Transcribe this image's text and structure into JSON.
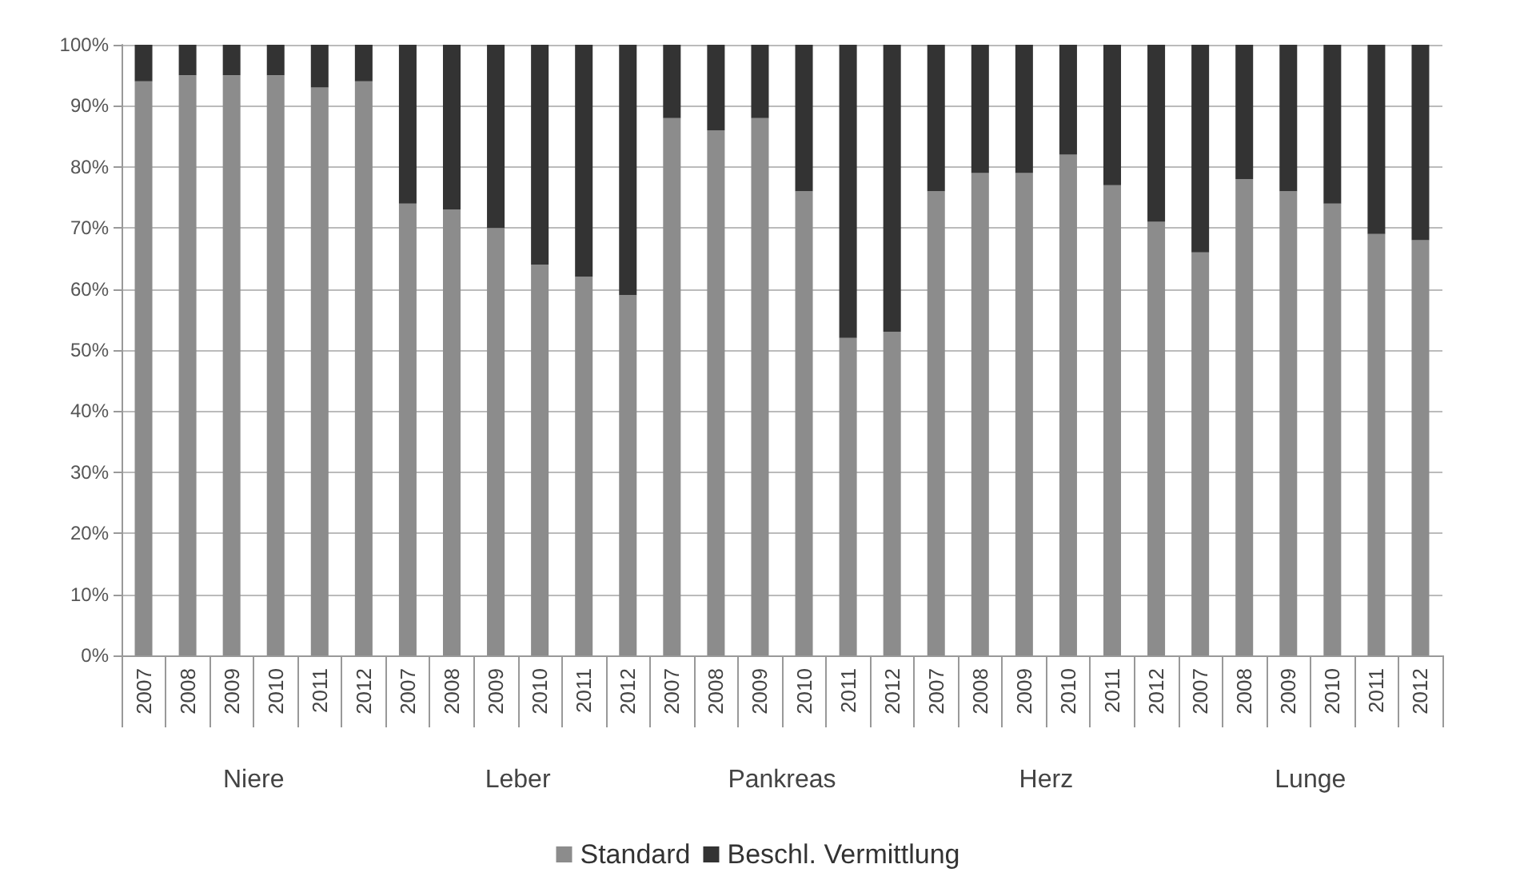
{
  "chart_data": {
    "type": "bar",
    "stacked": true,
    "categories": [
      "2007",
      "2008",
      "2009",
      "2010",
      "2011",
      "2012",
      "2007",
      "2008",
      "2009",
      "2010",
      "2011",
      "2012",
      "2007",
      "2008",
      "2009",
      "2010",
      "2011",
      "2012",
      "2007",
      "2008",
      "2009",
      "2010",
      "2011",
      "2012",
      "2007",
      "2008",
      "2009",
      "2010",
      "2011",
      "2012"
    ],
    "series": [
      {
        "name": "Standard",
        "color": "#8c8c8c",
        "values": [
          94,
          95,
          95,
          95,
          93,
          94,
          74,
          73,
          70,
          64,
          62,
          59,
          88,
          86,
          88,
          76,
          52,
          53,
          76,
          79,
          79,
          82,
          77,
          71,
          66,
          78,
          76,
          74,
          69,
          68
        ]
      },
      {
        "name": "Beschl. Vermittlung",
        "color": "#333333",
        "values": [
          6,
          5,
          5,
          5,
          7,
          6,
          26,
          27,
          30,
          36,
          38,
          41,
          12,
          14,
          12,
          24,
          48,
          47,
          24,
          21,
          21,
          18,
          23,
          29,
          34,
          22,
          24,
          26,
          31,
          32
        ]
      }
    ],
    "annotations": [
      "Niere",
      "Leber",
      "Pankreas",
      "Herz",
      "Lunge"
    ],
    "ylim": [
      0,
      100
    ],
    "yticks": [
      {
        "value": 0,
        "label": "0%"
      },
      {
        "value": 10,
        "label": "10%"
      },
      {
        "value": 20,
        "label": "20%"
      },
      {
        "value": 30,
        "label": "30%"
      },
      {
        "value": 40,
        "label": "40%"
      },
      {
        "value": 50,
        "label": "50%"
      },
      {
        "value": 60,
        "label": "60%"
      },
      {
        "value": 70,
        "label": "70%"
      },
      {
        "value": 80,
        "label": "80%"
      },
      {
        "value": 90,
        "label": "90%"
      },
      {
        "value": 100,
        "label": "100%"
      }
    ],
    "grid": "y",
    "legend": "bottom"
  }
}
